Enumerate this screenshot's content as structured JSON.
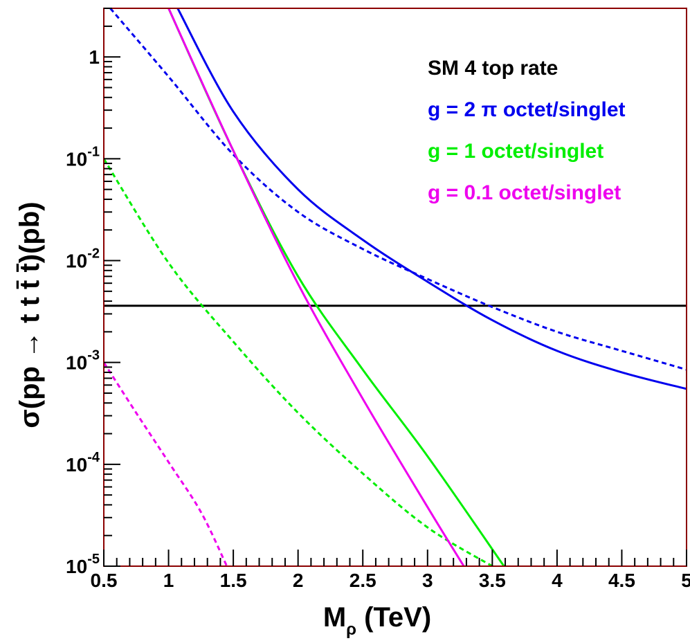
{
  "chart_data": {
    "type": "line",
    "title": "",
    "xlabel": "M",
    "xlabel_sub": "ρ",
    "xlabel_unit": " (TeV)",
    "ylabel": "σ(pp → t t t̄ t̄)(pb)",
    "y_scale": "log",
    "xlim": [
      0.5,
      5.0
    ],
    "ylim": [
      1e-05,
      3
    ],
    "x_ticks": [
      "0.5",
      "1",
      "1.5",
      "2",
      "2.5",
      "3",
      "3.5",
      "4",
      "4.5",
      "5"
    ],
    "x_tick_values": [
      0.5,
      1,
      1.5,
      2,
      2.5,
      3,
      3.5,
      4,
      4.5,
      5
    ],
    "y_ticks": [
      {
        "base": "10",
        "exp": "-5",
        "value": 1e-05
      },
      {
        "base": "10",
        "exp": "-4",
        "value": 0.0001
      },
      {
        "base": "10",
        "exp": "-3",
        "value": 0.001
      },
      {
        "base": "10",
        "exp": "-2",
        "value": 0.01
      },
      {
        "base": "10",
        "exp": "-1",
        "value": 0.1
      },
      {
        "base": "1",
        "exp": "",
        "value": 1
      }
    ],
    "grid": false,
    "legend_position": "top-right",
    "legend": [
      {
        "text": "SM 4 top rate",
        "color": "#000000"
      },
      {
        "text": "g = 2 π octet/singlet",
        "color": "#0000ee"
      },
      {
        "text": "g = 1 octet/singlet",
        "color": "#00ee00"
      },
      {
        "text": "g = 0.1 octet/singlet",
        "color": "#ee00ee"
      }
    ],
    "series": [
      {
        "id": "sm",
        "color": "#000000",
        "dash": false,
        "x": [
          0.5,
          5.0
        ],
        "y": [
          0.0036,
          0.0036
        ]
      },
      {
        "id": "g2pi-octet",
        "color": "#0000ee",
        "dash": false,
        "x": [
          1.07,
          1.5,
          2.0,
          2.5,
          3.0,
          3.5,
          4.0,
          4.5,
          5.0
        ],
        "y": [
          3.0,
          0.29,
          0.05,
          0.016,
          0.0062,
          0.0026,
          0.0013,
          0.0008,
          0.00055
        ]
      },
      {
        "id": "g2pi-singlet",
        "color": "#0000ee",
        "dash": true,
        "x": [
          0.55,
          1.0,
          1.5,
          2.0,
          2.5,
          3.0,
          3.5,
          4.0,
          4.5,
          5.0
        ],
        "y": [
          3.0,
          0.64,
          0.11,
          0.03,
          0.013,
          0.0066,
          0.0035,
          0.002,
          0.0013,
          0.00085
        ]
      },
      {
        "id": "g1-octet",
        "color": "#00ee00",
        "dash": false,
        "x": [
          1.0,
          1.5,
          2.0,
          2.5,
          3.0,
          3.59
        ],
        "y": [
          3.0,
          0.12,
          0.007,
          0.00085,
          0.00012,
          1e-05
        ]
      },
      {
        "id": "g1-singlet",
        "color": "#00ee00",
        "dash": true,
        "x": [
          0.5,
          1.0,
          1.5,
          2.0,
          2.5,
          3.0,
          3.5
        ],
        "y": [
          0.1,
          0.0095,
          0.0016,
          0.00032,
          8.13e-05,
          2.4e-05,
          1e-05
        ]
      },
      {
        "id": "g01-octet",
        "color": "#ee00ee",
        "dash": false,
        "x": [
          1.0,
          1.5,
          2.0,
          2.5,
          3.0,
          3.28
        ],
        "y": [
          3.0,
          0.12,
          0.0059,
          0.00044,
          3.8e-05,
          1e-05
        ]
      },
      {
        "id": "g01-singlet",
        "color": "#ee00ee",
        "dash": true,
        "x": [
          0.5,
          0.75,
          1.0,
          1.25,
          1.45
        ],
        "y": [
          0.001,
          0.00032,
          0.000105,
          3.4e-05,
          1e-05
        ]
      }
    ]
  }
}
